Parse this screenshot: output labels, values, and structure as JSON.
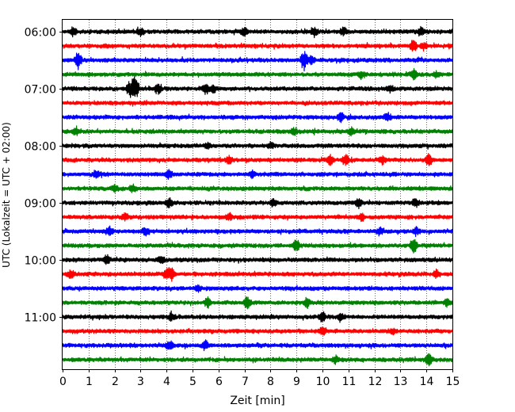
{
  "chart_data": {
    "type": "line",
    "subtype": "helicorder-seismogram",
    "xlabel": "Zeit  [min]",
    "ylabel": "UTC (Lokalzeit = UTC + 02:00)",
    "xlim": [
      0,
      15
    ],
    "x_ticks": [
      "0",
      "1",
      "2",
      "3",
      "4",
      "5",
      "6",
      "7",
      "8",
      "9",
      "10",
      "11",
      "12",
      "13",
      "14",
      "15"
    ],
    "y_ticks": [
      "06:00",
      "07:00",
      "08:00",
      "09:00",
      "10:00",
      "11:00"
    ],
    "grid": "vertical-dotted",
    "color_cycle": [
      "#000000",
      "#ff0000",
      "#0000ff",
      "#008000"
    ],
    "traces": [
      {
        "start": "06:00",
        "color": "#000000",
        "events": [
          [
            0.4,
            0.5
          ],
          [
            3.0,
            0.4
          ],
          [
            7.0,
            0.4
          ],
          [
            9.7,
            0.5
          ],
          [
            10.8,
            0.5
          ],
          [
            13.8,
            0.4
          ]
        ]
      },
      {
        "start": "06:15",
        "color": "#ff0000",
        "events": [
          [
            13.5,
            0.6
          ],
          [
            13.9,
            0.4
          ]
        ]
      },
      {
        "start": "06:30",
        "color": "#0000ff",
        "events": [
          [
            0.6,
            1.0
          ],
          [
            9.3,
            1.1
          ],
          [
            9.6,
            0.4
          ]
        ]
      },
      {
        "start": "06:45",
        "color": "#008000",
        "events": [
          [
            11.5,
            0.4
          ],
          [
            13.5,
            0.5
          ],
          [
            14.4,
            0.3
          ]
        ]
      },
      {
        "start": "07:00",
        "color": "#000000",
        "events": [
          [
            2.6,
            1.0
          ],
          [
            2.8,
            1.3
          ],
          [
            3.7,
            0.6
          ],
          [
            5.5,
            0.5
          ],
          [
            5.8,
            0.4
          ],
          [
            12.6,
            0.4
          ]
        ]
      },
      {
        "start": "07:15",
        "color": "#ff0000",
        "events": []
      },
      {
        "start": "07:30",
        "color": "#0000ff",
        "events": [
          [
            10.7,
            0.5
          ],
          [
            12.5,
            0.4
          ]
        ]
      },
      {
        "start": "07:45",
        "color": "#008000",
        "events": [
          [
            0.5,
            0.4
          ],
          [
            8.9,
            0.4
          ],
          [
            11.1,
            0.4
          ]
        ]
      },
      {
        "start": "08:00",
        "color": "#000000",
        "events": [
          [
            5.6,
            0.3
          ],
          [
            8.0,
            0.3
          ]
        ]
      },
      {
        "start": "08:15",
        "color": "#ff0000",
        "events": [
          [
            6.4,
            0.4
          ],
          [
            10.3,
            0.6
          ],
          [
            10.9,
            0.7
          ],
          [
            12.3,
            0.4
          ],
          [
            14.1,
            0.6
          ]
        ]
      },
      {
        "start": "08:30",
        "color": "#0000ff",
        "events": [
          [
            1.3,
            0.4
          ],
          [
            4.1,
            0.5
          ],
          [
            7.3,
            0.4
          ]
        ]
      },
      {
        "start": "08:45",
        "color": "#008000",
        "events": [
          [
            2.0,
            0.4
          ],
          [
            2.7,
            0.4
          ]
        ]
      },
      {
        "start": "09:00",
        "color": "#000000",
        "events": [
          [
            4.1,
            0.5
          ],
          [
            8.1,
            0.4
          ],
          [
            11.4,
            0.5
          ],
          [
            13.6,
            0.4
          ]
        ]
      },
      {
        "start": "09:15",
        "color": "#ff0000",
        "events": [
          [
            2.4,
            0.4
          ],
          [
            6.4,
            0.4
          ],
          [
            11.5,
            0.4
          ]
        ]
      },
      {
        "start": "09:30",
        "color": "#0000ff",
        "events": [
          [
            1.8,
            0.5
          ],
          [
            3.2,
            0.4
          ],
          [
            12.2,
            0.4
          ],
          [
            13.6,
            0.4
          ]
        ]
      },
      {
        "start": "09:45",
        "color": "#008000",
        "events": [
          [
            9.0,
            0.7
          ],
          [
            13.5,
            0.9
          ]
        ]
      },
      {
        "start": "10:00",
        "color": "#000000",
        "events": [
          [
            1.7,
            0.5
          ],
          [
            3.8,
            0.4
          ]
        ]
      },
      {
        "start": "10:15",
        "color": "#ff0000",
        "events": [
          [
            0.3,
            0.4
          ],
          [
            4.0,
            0.6
          ],
          [
            4.2,
            0.7
          ],
          [
            14.4,
            0.4
          ]
        ]
      },
      {
        "start": "10:30",
        "color": "#0000ff",
        "events": [
          [
            5.2,
            0.3
          ]
        ]
      },
      {
        "start": "10:45",
        "color": "#008000",
        "events": [
          [
            5.6,
            0.5
          ],
          [
            7.1,
            0.7
          ],
          [
            9.4,
            0.5
          ],
          [
            14.8,
            0.4
          ]
        ]
      },
      {
        "start": "11:00",
        "color": "#000000",
        "events": [
          [
            4.2,
            0.5
          ],
          [
            10.0,
            0.5
          ],
          [
            10.7,
            0.5
          ]
        ]
      },
      {
        "start": "11:15",
        "color": "#ff0000",
        "events": [
          [
            10.0,
            0.4
          ],
          [
            12.7,
            0.3
          ]
        ]
      },
      {
        "start": "11:30",
        "color": "#0000ff",
        "events": [
          [
            4.1,
            0.5
          ],
          [
            5.5,
            0.5
          ]
        ]
      },
      {
        "start": "11:45",
        "color": "#008000",
        "events": [
          [
            10.5,
            0.4
          ],
          [
            14.1,
            0.6
          ]
        ]
      }
    ]
  }
}
